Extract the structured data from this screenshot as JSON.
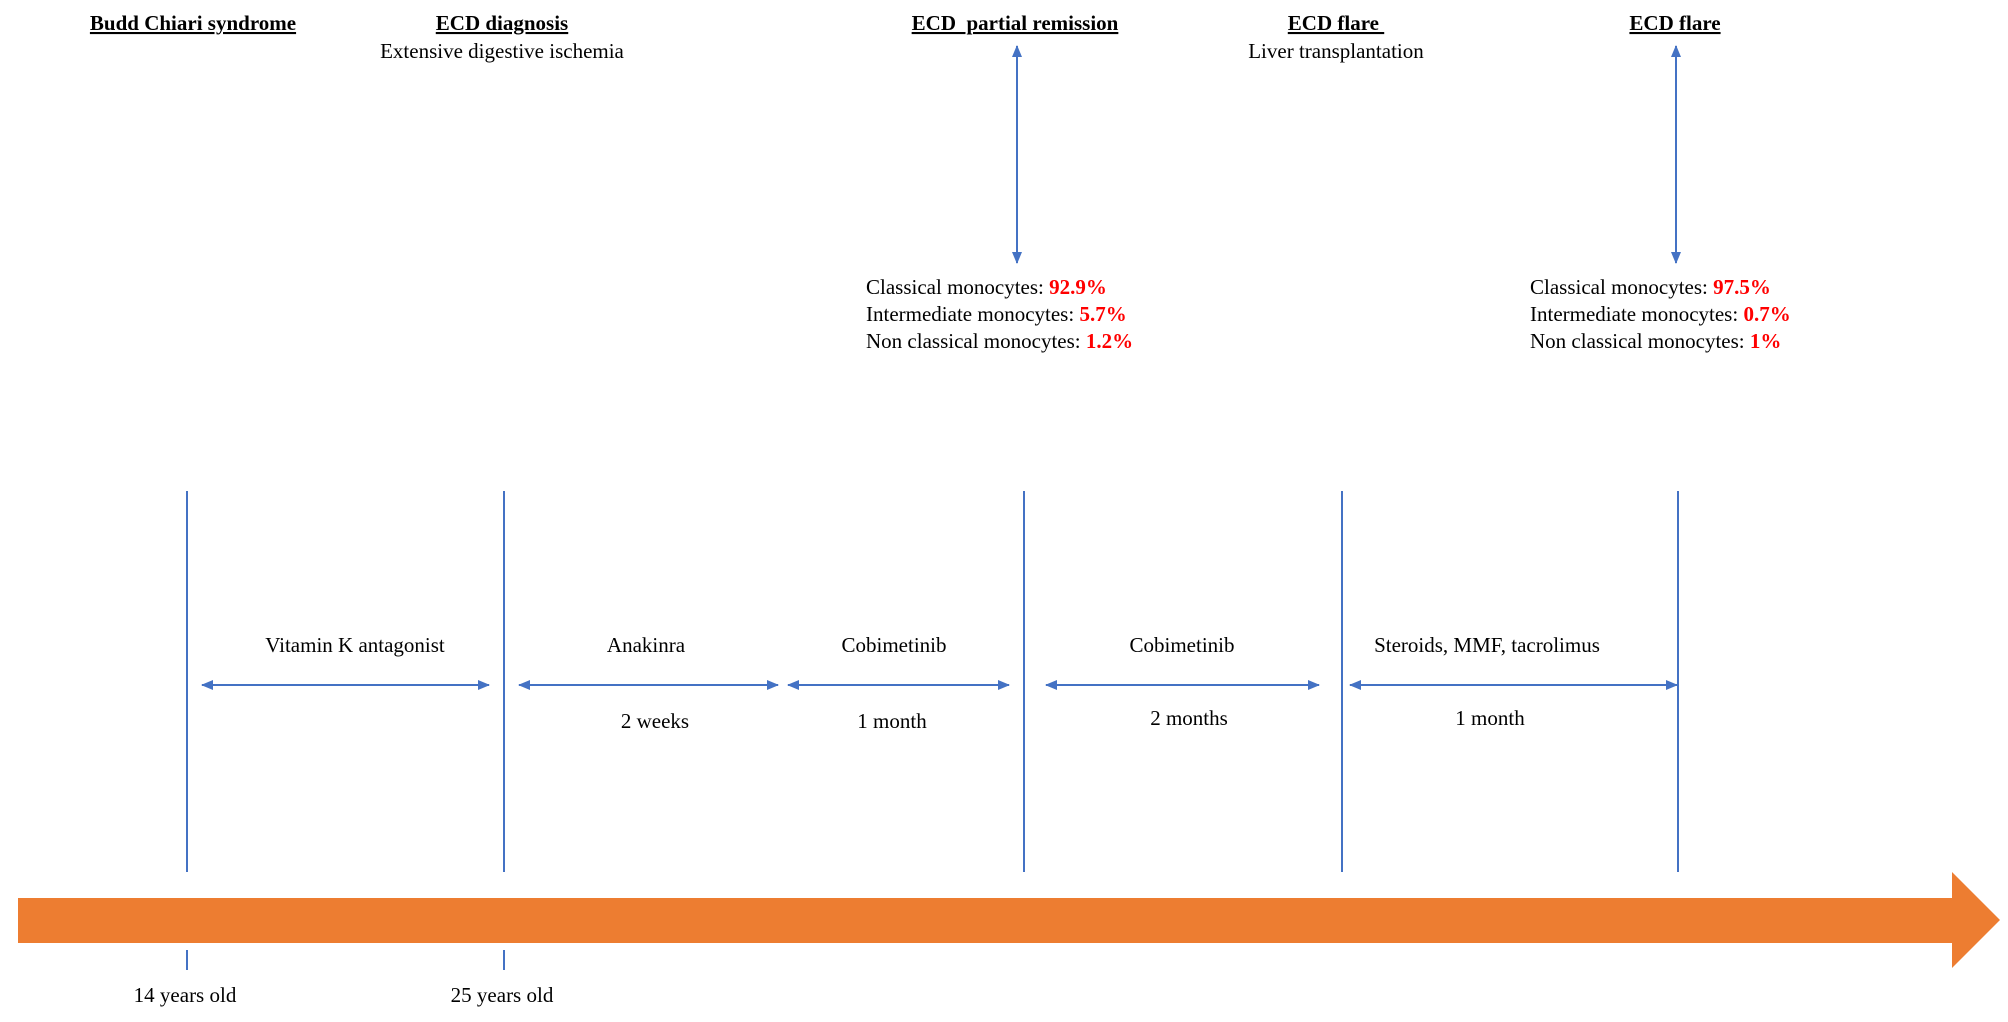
{
  "colors": {
    "line": "#4472C4",
    "timeline": "#ED7D31",
    "highlight": "#FF0000",
    "text": "#000000"
  },
  "events": [
    {
      "title": "Budd Chiari syndrome",
      "subtitle": ""
    },
    {
      "title": "ECD diagnosis",
      "subtitle": "Extensive digestive ischemia"
    },
    {
      "title": "ECD  partial remission",
      "subtitle": ""
    },
    {
      "title": "ECD flare ",
      "subtitle": "Liver transplantation"
    },
    {
      "title": "ECD flare",
      "subtitle": ""
    }
  ],
  "monocytes": [
    {
      "rows": [
        {
          "label": "Classical monocytes: ",
          "value": "92.9%"
        },
        {
          "label": "Intermediate monocytes: ",
          "value": "5.7%"
        },
        {
          "label": "Non classical monocytes: ",
          "value": "1.2%"
        }
      ]
    },
    {
      "rows": [
        {
          "label": "Classical monocytes: ",
          "value": "97.5%"
        },
        {
          "label": "Intermediate monocytes: ",
          "value": "0.7%"
        },
        {
          "label": "Non classical monocytes: ",
          "value": "1%"
        }
      ]
    }
  ],
  "treatments": [
    {
      "name": "Vitamin K antagonist",
      "duration": ""
    },
    {
      "name": "Anakinra",
      "duration": "2 weeks"
    },
    {
      "name": "Cobimetinib",
      "duration": "1 month"
    },
    {
      "name": "Cobimetinib",
      "duration": "2 months"
    },
    {
      "name": "Steroids, MMF, tacrolimus",
      "duration": "1 month"
    }
  ],
  "ages": [
    "14 years old",
    "25 years old"
  ]
}
